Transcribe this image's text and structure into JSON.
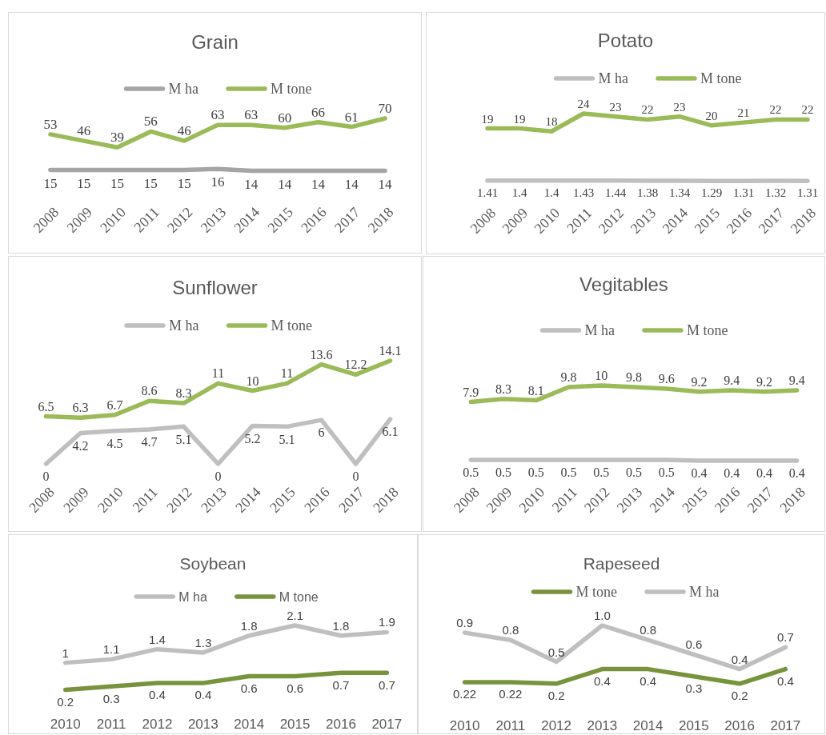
{
  "chart_data": [
    {
      "type": "line",
      "title": "Grain",
      "categories": [
        "2008",
        "2009",
        "2010",
        "2011",
        "2012",
        "2013",
        "2014",
        "2015",
        "2016",
        "2017",
        "2018"
      ],
      "series": [
        {
          "name": "M ha",
          "color": "#a5a5a5",
          "values": [
            15,
            15,
            15,
            15,
            15,
            16,
            14,
            14,
            14,
            14,
            14
          ]
        },
        {
          "name": "M tone",
          "color": "#9bbb59",
          "values": [
            53,
            46,
            39,
            56,
            46,
            63,
            63,
            60,
            66,
            61,
            70
          ]
        }
      ],
      "legend": "top",
      "data_labels": true
    },
    {
      "type": "line",
      "title": "Potato",
      "categories": [
        "2008",
        "2009",
        "2010",
        "2011",
        "2012",
        "2013",
        "2014",
        "2015",
        "2016",
        "2017",
        "2018"
      ],
      "series": [
        {
          "name": "M ha",
          "color": "#bfbfbf",
          "values": [
            1.41,
            1.4,
            1.4,
            1.43,
            1.44,
            1.38,
            1.34,
            1.29,
            1.31,
            1.32,
            1.31
          ]
        },
        {
          "name": "M tone",
          "color": "#9bbb59",
          "values": [
            19,
            19,
            18,
            24,
            23,
            22,
            23,
            20,
            21,
            22,
            22
          ]
        }
      ],
      "legend": "top",
      "data_labels": true
    },
    {
      "type": "line",
      "title": "Sunflower",
      "categories": [
        "2008",
        "2009",
        "2010",
        "2011",
        "2012",
        "2013",
        "2014",
        "2015",
        "2016",
        "2017",
        "2018"
      ],
      "series": [
        {
          "name": "M ha",
          "color": "#bfbfbf",
          "values": [
            0,
            4.2,
            4.5,
            4.7,
            5.1,
            0,
            5.2,
            5.1,
            6,
            0,
            6.1
          ]
        },
        {
          "name": "M tone",
          "color": "#9bbb59",
          "values": [
            6.5,
            6.3,
            6.7,
            8.6,
            8.3,
            11,
            10,
            11,
            13.6,
            12.2,
            14.1
          ]
        }
      ],
      "legend": "top",
      "data_labels": true
    },
    {
      "type": "line",
      "title": "Vegitables",
      "categories": [
        "2008",
        "2009",
        "2010",
        "2011",
        "2012",
        "2013",
        "2014",
        "2015",
        "2016",
        "2017",
        "2018"
      ],
      "series": [
        {
          "name": "M ha",
          "color": "#bfbfbf",
          "values": [
            0.5,
            0.5,
            0.5,
            0.5,
            0.5,
            0.5,
            0.5,
            0.4,
            0.4,
            0.4,
            0.4
          ]
        },
        {
          "name": "M tone",
          "color": "#9bbb59",
          "values": [
            7.9,
            8.3,
            8.1,
            9.8,
            10,
            9.8,
            9.6,
            9.2,
            9.4,
            9.2,
            9.4
          ]
        }
      ],
      "legend": "top",
      "data_labels": true
    },
    {
      "type": "line",
      "title": "Soybean",
      "categories": [
        "2010",
        "2011",
        "2012",
        "2013",
        "2014",
        "2015",
        "2016",
        "2017"
      ],
      "series": [
        {
          "name": "M ha",
          "color": "#bfbfbf",
          "values": [
            1,
            1.1,
            1.4,
            1.3,
            1.8,
            2.1,
            1.8,
            1.9
          ]
        },
        {
          "name": "M tone",
          "color": "#77933c",
          "values": [
            0.2,
            0.3,
            0.4,
            0.4,
            0.6,
            0.6,
            0.7,
            0.7
          ]
        }
      ],
      "legend": "top",
      "data_labels": true
    },
    {
      "type": "line",
      "title": "Rapeseed",
      "categories": [
        "2010",
        "2011",
        "2012",
        "2013",
        "2014",
        "2015",
        "2016",
        "2017"
      ],
      "series": [
        {
          "name": "M tone",
          "color": "#77933c",
          "values": [
            0.22,
            0.22,
            0.2,
            0.4,
            0.4,
            0.3,
            0.2,
            0.4
          ],
          "value_labels": [
            "0.22",
            "0.22",
            "0.2",
            "0.4",
            "0.4",
            "0.3",
            "0.2",
            "0.4"
          ]
        },
        {
          "name": "M ha",
          "color": "#bfbfbf",
          "values": [
            0.9,
            0.8,
            0.5,
            1.0,
            0.8,
            0.6,
            0.4,
            0.7
          ],
          "value_labels": [
            "0.9",
            "0.8",
            "0.5",
            "1.0",
            "0.8",
            "0.6",
            "0.4",
            "0.7"
          ]
        }
      ],
      "legend": "top"
    }
  ]
}
